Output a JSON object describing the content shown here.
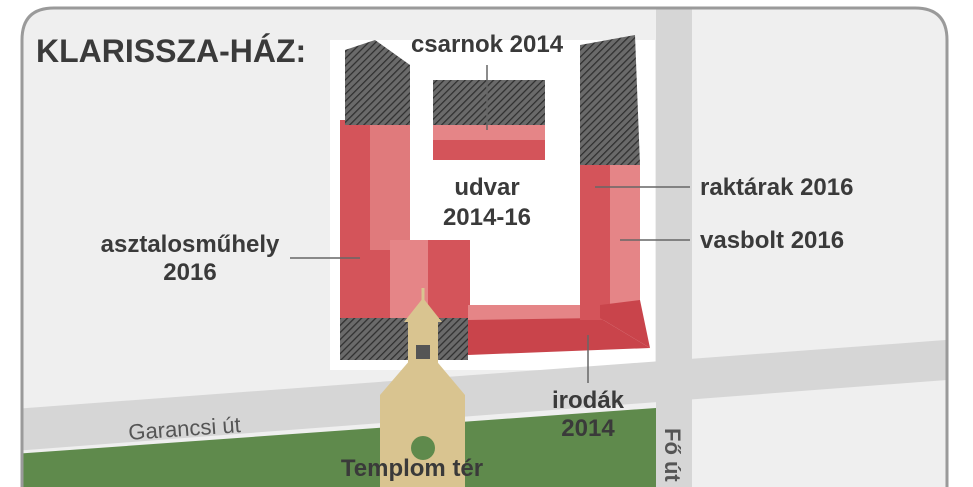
{
  "title": "KLARISSZA-HÁZ:",
  "labels": [
    {
      "lines": [
        "csarnok 2014"
      ]
    },
    {
      "lines": [
        "udvar",
        "2014-16"
      ]
    },
    {
      "lines": [
        "raktárak 2016"
      ]
    },
    {
      "lines": [
        "asztalosműhely",
        "2016"
      ]
    },
    {
      "lines": [
        "vasbolt 2016"
      ]
    },
    {
      "lines": [
        "irodák",
        "2014"
      ]
    }
  ],
  "streets": [
    "Garancsi út",
    "Fő út"
  ],
  "square": "Templom tér"
}
